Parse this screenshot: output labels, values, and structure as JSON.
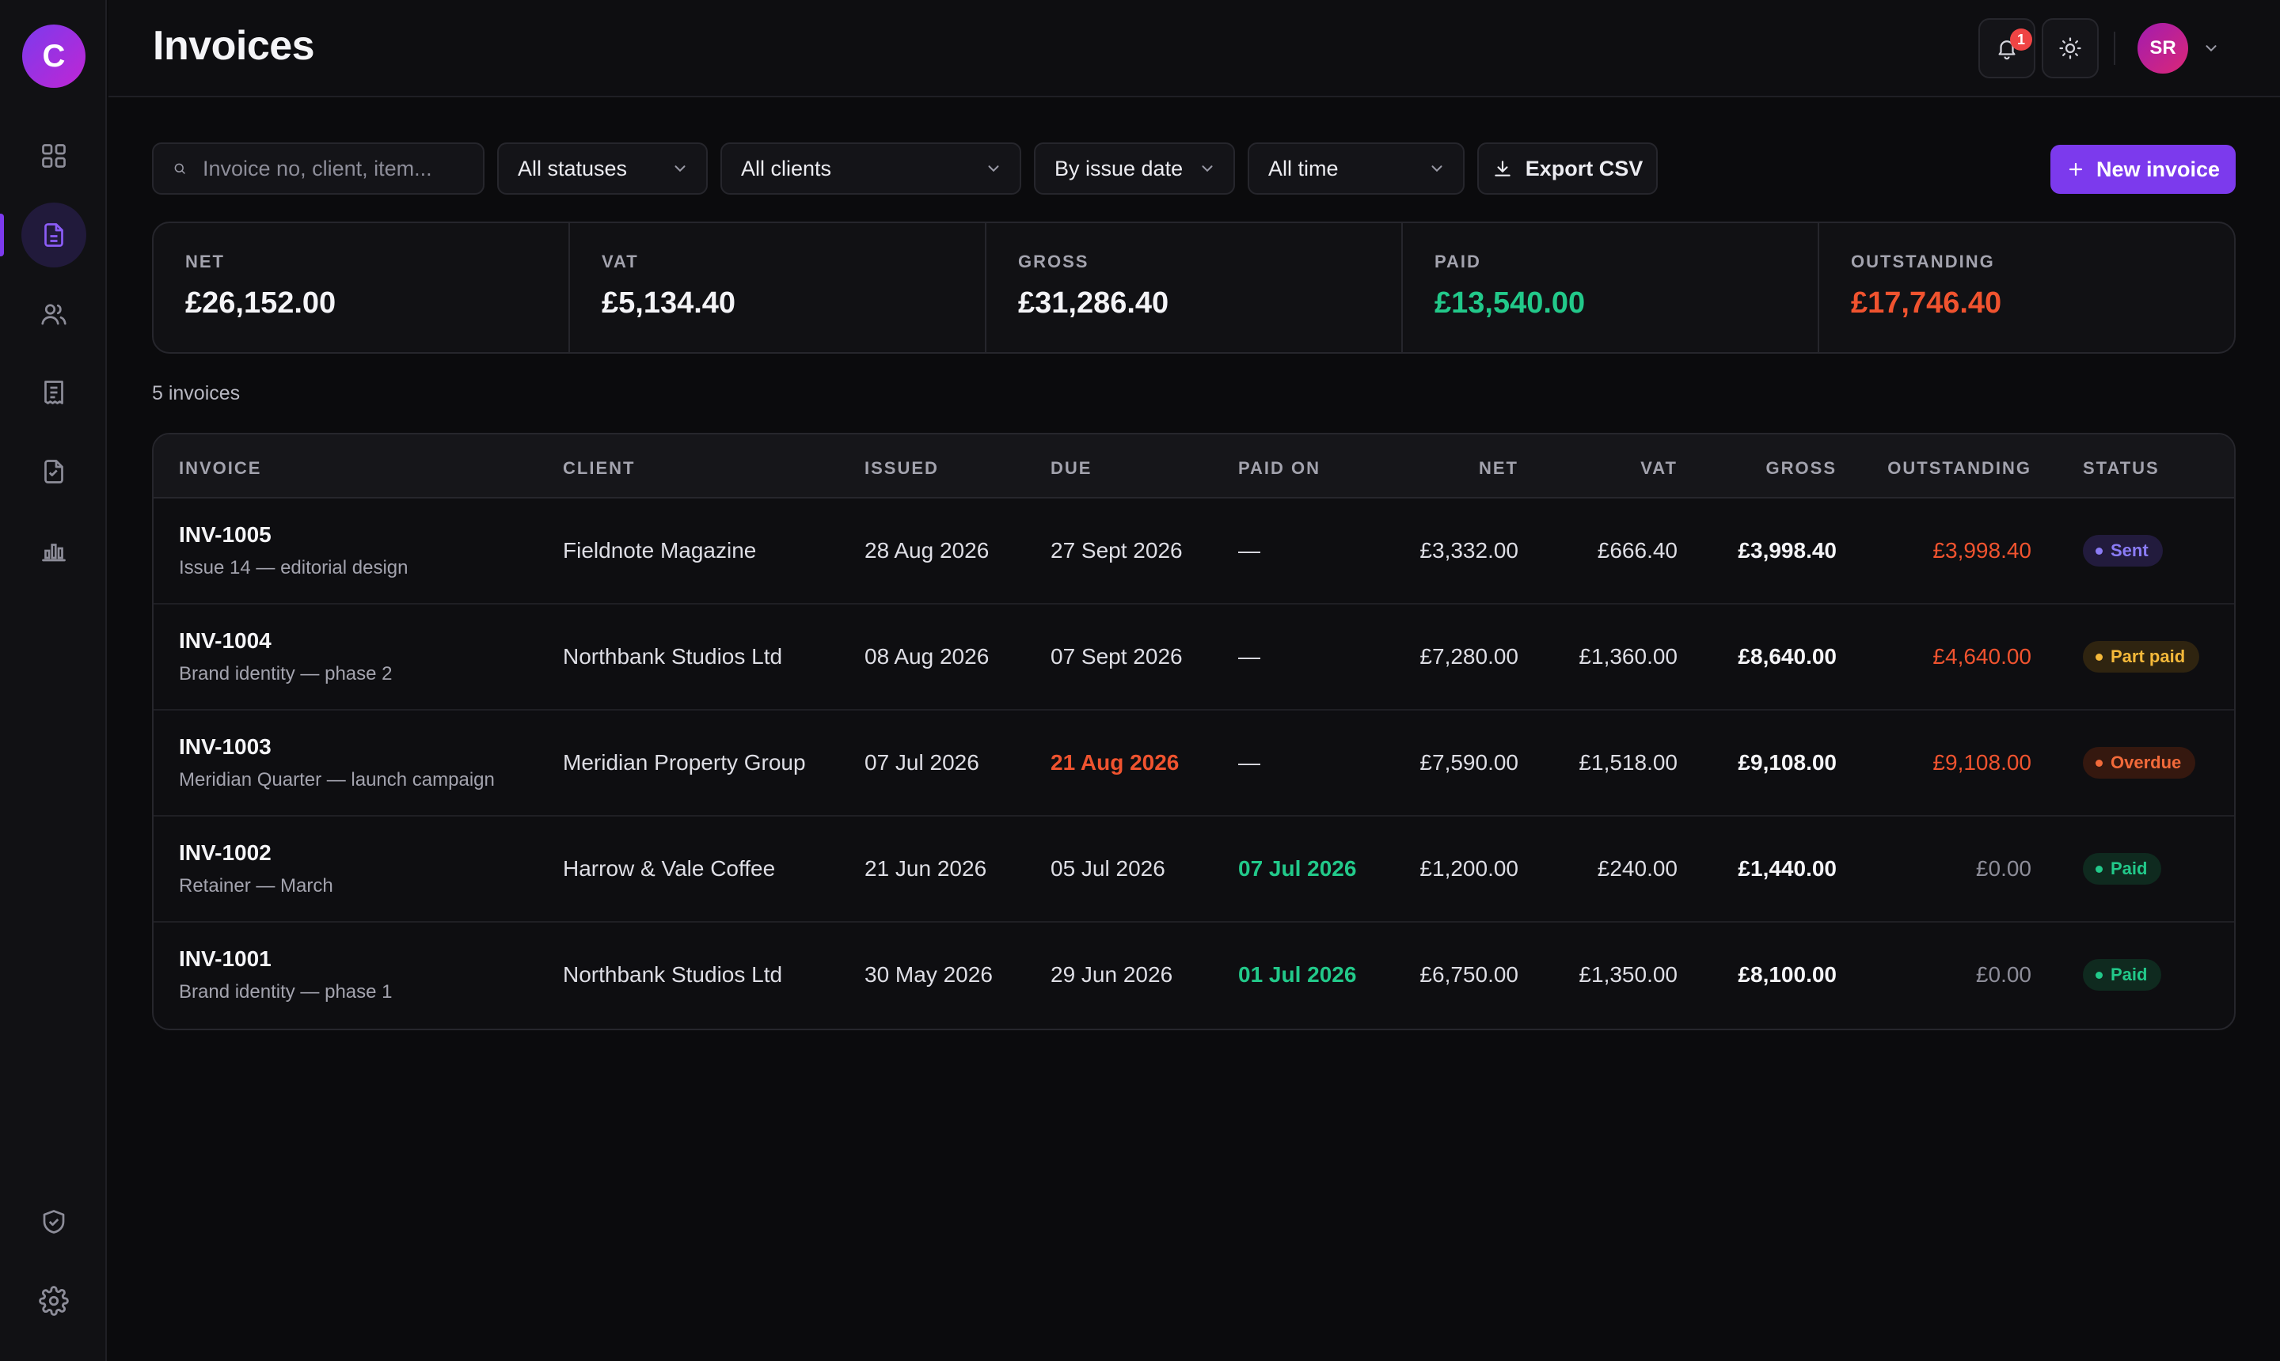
{
  "app": {
    "logo_letter": "C",
    "page_title": "Invoices"
  },
  "sidebar": {
    "items": [
      {
        "name": "dashboard",
        "icon": "grid-icon",
        "active": false
      },
      {
        "name": "invoices",
        "icon": "document-icon",
        "active": true
      },
      {
        "name": "clients",
        "icon": "users-icon",
        "active": false
      },
      {
        "name": "expenses",
        "icon": "receipt-icon",
        "active": false
      },
      {
        "name": "estimates",
        "icon": "file-text-icon",
        "active": false
      },
      {
        "name": "reports",
        "icon": "bar-chart-icon",
        "active": false
      }
    ],
    "bottom": [
      {
        "name": "security",
        "icon": "shield-check-icon"
      },
      {
        "name": "settings",
        "icon": "gear-icon"
      }
    ]
  },
  "header": {
    "notification_count": "1",
    "avatar_initials": "SR"
  },
  "toolbar": {
    "search_placeholder": "Invoice no, client, item...",
    "status_filter": "All statuses",
    "client_filter": "All clients",
    "sort": "By issue date",
    "period": "All time",
    "export_label": "Export CSV",
    "new_invoice_label": "New invoice"
  },
  "summary": {
    "net": {
      "label": "NET",
      "value": "£26,152.00"
    },
    "vat": {
      "label": "VAT",
      "value": "£5,134.40"
    },
    "gross": {
      "label": "GROSS",
      "value": "£31,286.40"
    },
    "paid": {
      "label": "PAID",
      "value": "£13,540.00"
    },
    "outstanding": {
      "label": "OUTSTANDING",
      "value": "£17,746.40"
    }
  },
  "invoice_count": "5 invoices",
  "table": {
    "headers": {
      "invoice": "INVOICE",
      "client": "CLIENT",
      "issued": "ISSUED",
      "due": "DUE",
      "paid_on": "PAID ON",
      "net": "NET",
      "vat": "VAT",
      "gross": "GROSS",
      "outstanding": "OUTSTANDING",
      "status": "STATUS"
    },
    "rows": [
      {
        "number": "INV-1005",
        "description": "Issue 14 — editorial design",
        "client": "Fieldnote Magazine",
        "issued": "28 Aug 2026",
        "due": "27 Sept 2026",
        "paid_on": "—",
        "net": "£3,332.00",
        "vat": "£666.40",
        "gross": "£3,998.40",
        "outstanding": "£3,998.40",
        "status": "Sent"
      },
      {
        "number": "INV-1004",
        "description": "Brand identity — phase 2",
        "client": "Northbank Studios Ltd",
        "issued": "08 Aug 2026",
        "due": "07 Sept 2026",
        "paid_on": "—",
        "net": "£7,280.00",
        "vat": "£1,360.00",
        "gross": "£8,640.00",
        "outstanding": "£4,640.00",
        "status": "Part paid"
      },
      {
        "number": "INV-1003",
        "description": "Meridian Quarter — launch campaign",
        "client": "Meridian Property Group",
        "issued": "07 Jul 2026",
        "due": "21 Aug 2026",
        "paid_on": "—",
        "net": "£7,590.00",
        "vat": "£1,518.00",
        "gross": "£9,108.00",
        "outstanding": "£9,108.00",
        "status": "Overdue"
      },
      {
        "number": "INV-1002",
        "description": "Retainer — March",
        "client": "Harrow & Vale Coffee",
        "issued": "21 Jun 2026",
        "due": "05 Jul 2026",
        "paid_on": "07 Jul 2026",
        "net": "£1,200.00",
        "vat": "£240.00",
        "gross": "£1,440.00",
        "outstanding": "£0.00",
        "status": "Paid"
      },
      {
        "number": "INV-1001",
        "description": "Brand identity — phase 1",
        "client": "Northbank Studios Ltd",
        "issued": "30 May 2026",
        "due": "29 Jun 2026",
        "paid_on": "01 Jul 2026",
        "net": "£6,750.00",
        "vat": "£1,350.00",
        "gross": "£8,100.00",
        "outstanding": "£0.00",
        "status": "Paid"
      }
    ]
  },
  "colors": {
    "accent": "#7c3aed",
    "paid": "#22c98a",
    "outstanding": "#f0532f",
    "partial": "#f5b93a",
    "background": "#0b0b0d"
  }
}
